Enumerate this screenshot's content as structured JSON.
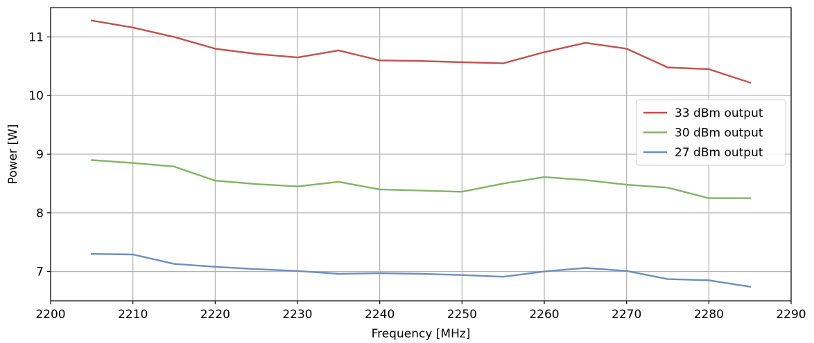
{
  "chart_data": {
    "type": "line",
    "title": "",
    "xlabel": "Frequency [MHz]",
    "ylabel": "Power [W]",
    "xlim": [
      2200,
      2290
    ],
    "ylim": [
      6.5,
      11.5
    ],
    "xticks": [
      2200,
      2210,
      2220,
      2230,
      2240,
      2250,
      2260,
      2270,
      2280,
      2290
    ],
    "yticks": [
      7,
      8,
      9,
      10,
      11
    ],
    "grid": true,
    "legend_position": "right",
    "x": [
      2205,
      2210,
      2215,
      2220,
      2225,
      2230,
      2235,
      2240,
      2245,
      2250,
      2255,
      2260,
      2265,
      2270,
      2275,
      2280,
      2285
    ],
    "series": [
      {
        "name": "33 dBm output",
        "color": "#c0504d",
        "values": [
          11.28,
          11.16,
          11.0,
          10.8,
          10.71,
          10.65,
          10.77,
          10.6,
          10.59,
          10.57,
          10.55,
          10.74,
          10.9,
          10.8,
          10.48,
          10.45,
          10.22
        ]
      },
      {
        "name": "30 dBm output",
        "color": "#82b366",
        "values": [
          8.9,
          8.85,
          8.79,
          8.55,
          8.49,
          8.45,
          8.53,
          8.4,
          8.38,
          8.36,
          8.5,
          8.61,
          8.56,
          8.48,
          8.43,
          8.25,
          8.25
        ]
      },
      {
        "name": "27 dBm output",
        "color": "#6c8ebf",
        "values": [
          7.3,
          7.29,
          7.13,
          7.08,
          7.04,
          7.01,
          6.96,
          6.97,
          6.96,
          6.94,
          6.91,
          7.0,
          7.06,
          7.01,
          6.87,
          6.85,
          6.74
        ]
      }
    ]
  }
}
